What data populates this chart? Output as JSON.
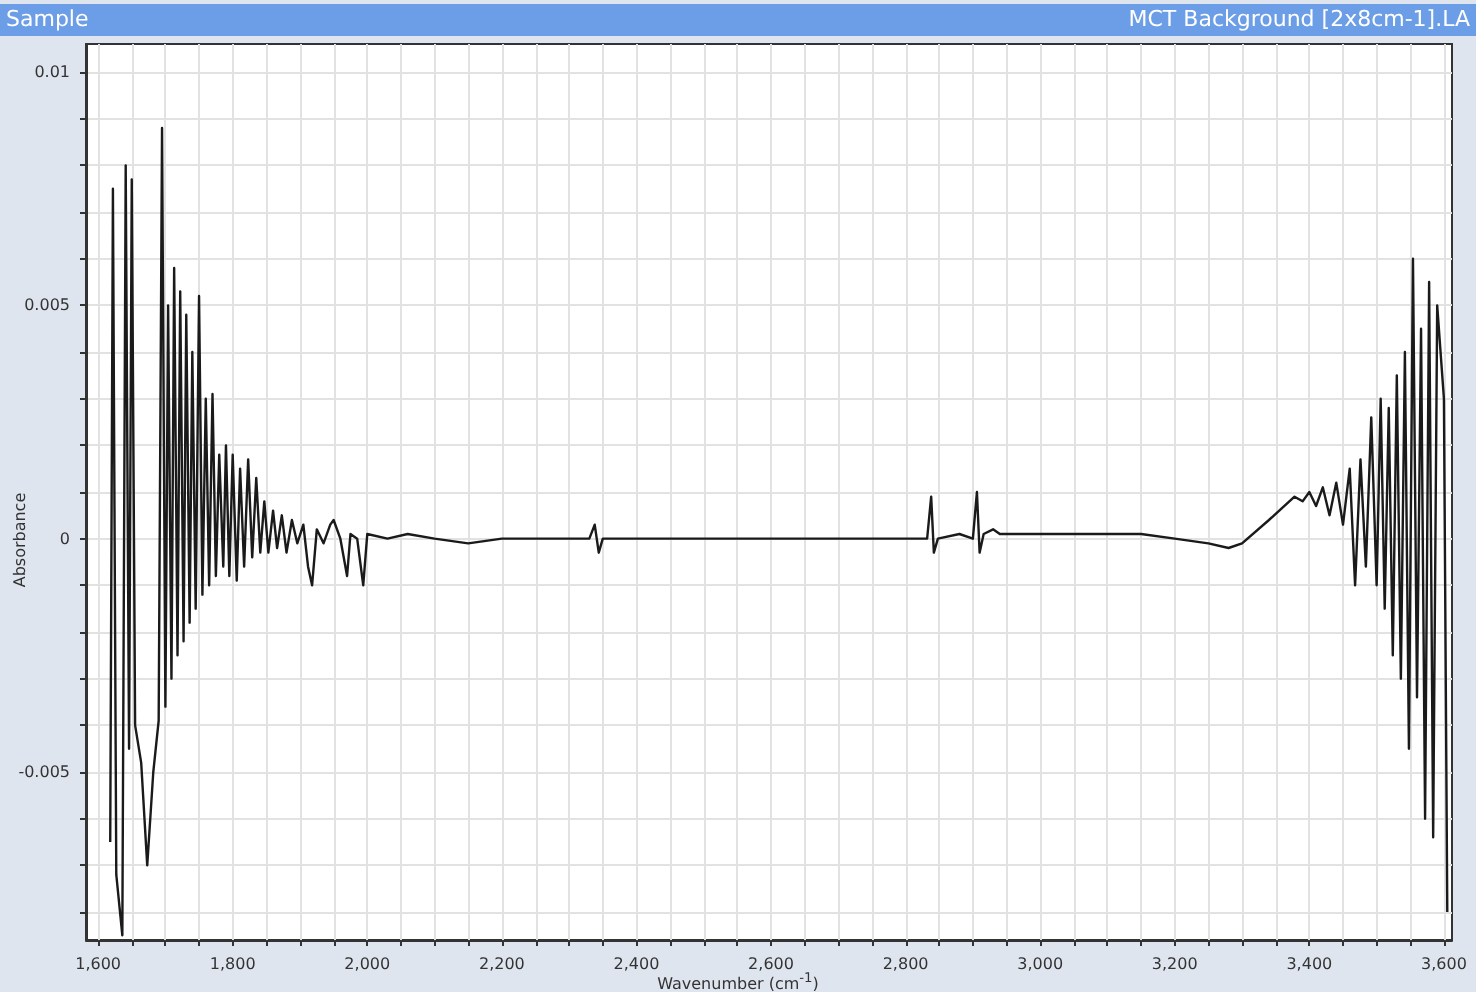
{
  "chart_data": {
    "type": "line",
    "title": "Sample",
    "subtitle": "MCT Background [2x8cm-1].LA",
    "xlabel": "Wavenumber (cm$^{-1}$)",
    "ylabel": "Absorbance",
    "x": [
      1618,
      1622,
      1627,
      1636,
      1641,
      1646,
      1650,
      1655,
      1664,
      1673,
      1682,
      1690,
      1695,
      1700,
      1704,
      1709,
      1713,
      1718,
      1722,
      1727,
      1731,
      1736,
      1740,
      1745,
      1750,
      1755,
      1760,
      1765,
      1770,
      1775,
      1780,
      1786,
      1790,
      1795,
      1800,
      1806,
      1811,
      1817,
      1823,
      1829,
      1835,
      1841,
      1847,
      1853,
      1860,
      1866,
      1873,
      1880,
      1888,
      1896,
      1905,
      1912,
      1918,
      1925,
      1935,
      1945,
      1950,
      1960,
      1970,
      1975,
      1985,
      1994,
      2000,
      2030,
      2060,
      2100,
      2150,
      2200,
      2250,
      2300,
      2330,
      2338,
      2344,
      2350,
      2400,
      2500,
      2600,
      2700,
      2800,
      2832,
      2838,
      2842,
      2848,
      2880,
      2900,
      2906,
      2910,
      2916,
      2930,
      2940,
      2960,
      3000,
      3050,
      3100,
      3150,
      3200,
      3250,
      3280,
      3300,
      3340,
      3378,
      3390,
      3400,
      3410,
      3420,
      3430,
      3440,
      3450,
      3460,
      3468,
      3476,
      3484,
      3492,
      3500,
      3506,
      3512,
      3518,
      3524,
      3530,
      3536,
      3542,
      3548,
      3554,
      3560,
      3566,
      3572,
      3578,
      3584,
      3590,
      3600,
      3605
    ],
    "values": [
      -0.0065,
      0.0075,
      -0.0072,
      -0.0085,
      0.008,
      -0.0045,
      0.0077,
      -0.004,
      -0.0048,
      -0.007,
      -0.005,
      -0.0039,
      0.0088,
      -0.0036,
      0.005,
      -0.003,
      0.0058,
      -0.0025,
      0.0053,
      -0.0022,
      0.0048,
      -0.0018,
      0.004,
      -0.0015,
      0.0052,
      -0.0012,
      0.003,
      -0.001,
      0.0031,
      -0.0008,
      0.0018,
      -0.0006,
      0.002,
      -0.0008,
      0.0018,
      -0.0009,
      0.0015,
      -0.0006,
      0.0017,
      -0.0004,
      0.0013,
      -0.0003,
      0.0008,
      -0.0003,
      0.0006,
      -0.0002,
      0.0005,
      -0.0003,
      0.0004,
      -0.0001,
      0.0003,
      -0.0006,
      -0.001,
      0.0002,
      -0.0001,
      0.0003,
      0.0004,
      0,
      -0.0008,
      0.0001,
      0,
      -0.001,
      0.0001,
      0,
      0.0001,
      0,
      -0.0001,
      0,
      0,
      0,
      0,
      0.0003,
      -0.0003,
      0,
      0,
      0,
      0,
      0,
      0,
      0,
      0.0009,
      -0.0003,
      0,
      0.0001,
      0,
      0.001,
      -0.0003,
      0.0001,
      0.0002,
      0.0001,
      0.0001,
      0.0001,
      0.0001,
      0.0001,
      0.0001,
      0,
      -0.0001,
      -0.0002,
      -0.0001,
      0.0004,
      0.0009,
      0.0008,
      0.001,
      0.0007,
      0.0011,
      0.0005,
      0.0012,
      0.0003,
      0.0015,
      -0.001,
      0.0017,
      -0.0006,
      0.0026,
      -0.001,
      0.003,
      -0.0015,
      0.0028,
      -0.0025,
      0.0035,
      -0.003,
      0.004,
      -0.0045,
      0.006,
      -0.0034,
      0.0045,
      -0.006,
      0.0055,
      -0.0064,
      0.005,
      0.003,
      -0.008
    ],
    "color": "#1a1a1a",
    "marker": "none",
    "line_style": "solid",
    "grid": true,
    "xlim": [
      1582,
      3612
    ],
    "ylim": [
      -0.0086,
      0.0106
    ],
    "xticks": [
      {
        "value": 1600,
        "label": "1,600"
      },
      {
        "value": 1650,
        "label": null
      },
      {
        "value": 1700,
        "label": null
      },
      {
        "value": 1750,
        "label": null
      },
      {
        "value": 1800,
        "label": "1,800"
      },
      {
        "value": 1850,
        "label": null
      },
      {
        "value": 1900,
        "label": null
      },
      {
        "value": 1950,
        "label": null
      },
      {
        "value": 2000,
        "label": "2,000"
      },
      {
        "value": 2050,
        "label": null
      },
      {
        "value": 2100,
        "label": null
      },
      {
        "value": 2150,
        "label": null
      },
      {
        "value": 2200,
        "label": "2,200"
      },
      {
        "value": 2250,
        "label": null
      },
      {
        "value": 2300,
        "label": null
      },
      {
        "value": 2350,
        "label": null
      },
      {
        "value": 2400,
        "label": "2,400"
      },
      {
        "value": 2450,
        "label": null
      },
      {
        "value": 2500,
        "label": null
      },
      {
        "value": 2550,
        "label": null
      },
      {
        "value": 2600,
        "label": "2,600"
      },
      {
        "value": 2650,
        "label": null
      },
      {
        "value": 2700,
        "label": null
      },
      {
        "value": 2750,
        "label": null
      },
      {
        "value": 2800,
        "label": "2,800"
      },
      {
        "value": 2850,
        "label": null
      },
      {
        "value": 2900,
        "label": null
      },
      {
        "value": 2950,
        "label": null
      },
      {
        "value": 3000,
        "label": "3,000"
      },
      {
        "value": 3050,
        "label": null
      },
      {
        "value": 3100,
        "label": null
      },
      {
        "value": 3150,
        "label": null
      },
      {
        "value": 3200,
        "label": "3,200"
      },
      {
        "value": 3250,
        "label": null
      },
      {
        "value": 3300,
        "label": null
      },
      {
        "value": 3350,
        "label": null
      },
      {
        "value": 3400,
        "label": "3,400"
      },
      {
        "value": 3450,
        "label": null
      },
      {
        "value": 3500,
        "label": null
      },
      {
        "value": 3550,
        "label": null
      },
      {
        "value": 3600,
        "label": "3,600"
      }
    ],
    "yticks": [
      {
        "value": -0.008,
        "label": null
      },
      {
        "value": -0.007,
        "label": null
      },
      {
        "value": -0.006,
        "label": null
      },
      -0.005,
      {
        "value": -0.004,
        "label": null
      },
      {
        "value": -0.003,
        "label": null
      },
      {
        "value": -0.002,
        "label": null
      },
      {
        "value": -0.001,
        "label": null
      },
      0,
      {
        "value": 0.001,
        "label": null
      },
      {
        "value": 0.002,
        "label": null
      },
      {
        "value": 0.003,
        "label": null
      },
      {
        "value": 0.004,
        "label": null
      },
      0.005,
      {
        "value": 0.006,
        "label": null
      },
      {
        "value": 0.007,
        "label": null
      },
      {
        "value": 0.008,
        "label": null
      },
      {
        "value": 0.009,
        "label": null
      },
      0.01
    ]
  }
}
